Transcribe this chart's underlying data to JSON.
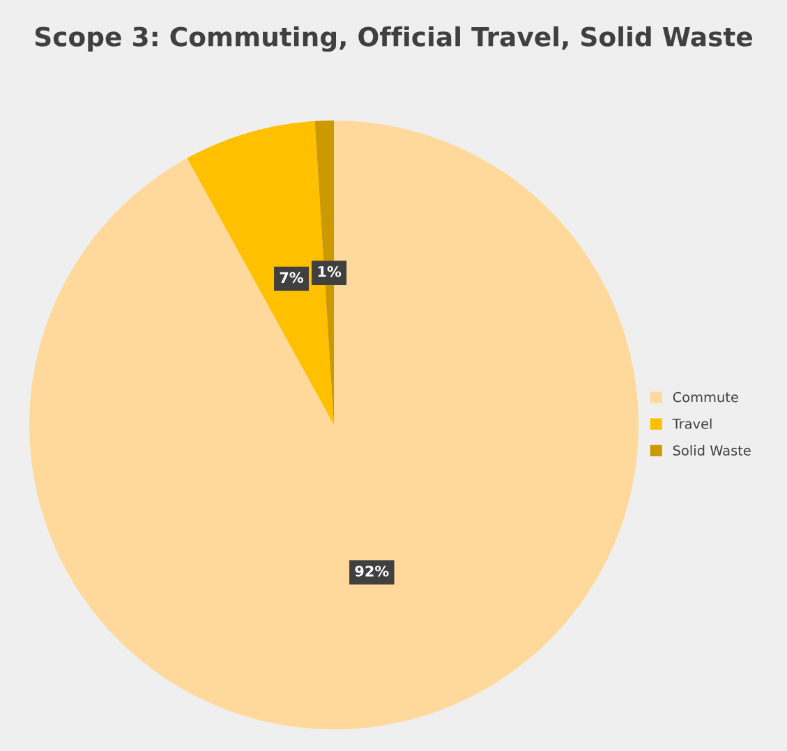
{
  "chart_data": {
    "type": "pie",
    "title": "Scope 3: Commuting, Official Travel, Solid Waste",
    "categories": [
      "Commute",
      "Travel",
      "Solid Waste"
    ],
    "values": [
      92,
      7,
      1
    ],
    "colors": [
      "#ffd99b",
      "#ffc000",
      "#cc9a00"
    ],
    "value_labels": [
      "92%",
      "7%",
      "1%"
    ],
    "legend": "right"
  }
}
